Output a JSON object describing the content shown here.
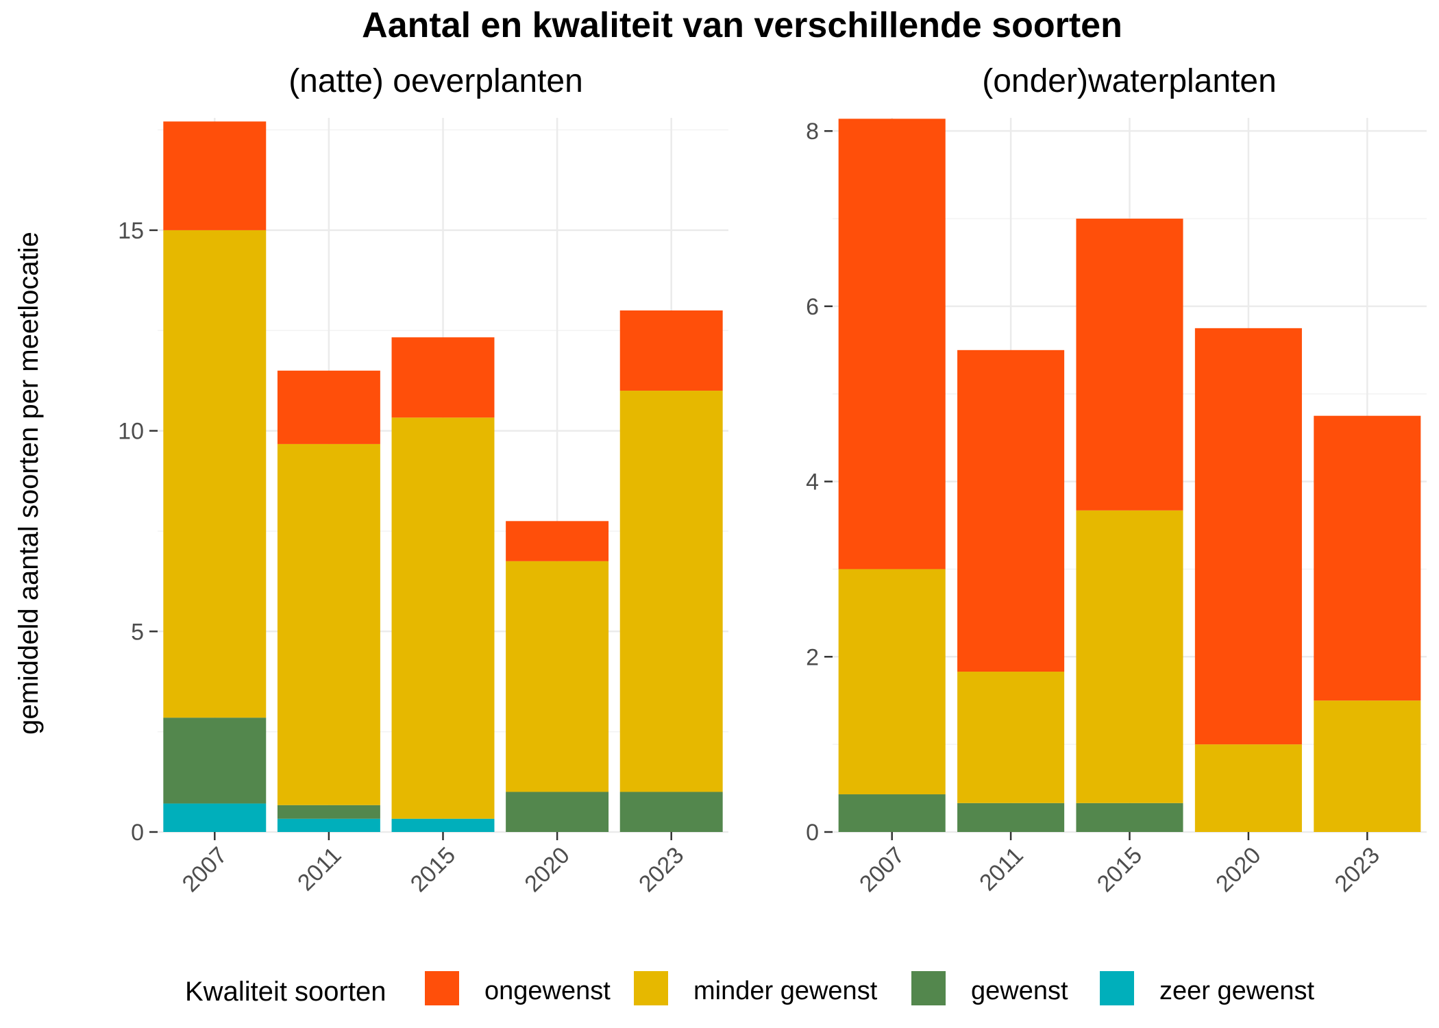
{
  "chart_data": {
    "type": "bar",
    "stacked": true,
    "title": "Aantal en kwaliteit van verschillende soorten",
    "ylabel": "gemiddeld aantal soorten per meetlocatie",
    "legend": {
      "title": "Kwaliteit soorten",
      "position": "bottom",
      "entries": [
        {
          "key": "ongewenst",
          "label": "ongewenst",
          "color": "#FF4F0A"
        },
        {
          "key": "minder_gewenst",
          "label": "minder gewenst",
          "color": "#E6B800"
        },
        {
          "key": "gewenst",
          "label": "gewenst",
          "color": "#53874D"
        },
        {
          "key": "zeer_gewenst",
          "label": "zeer gewenst",
          "color": "#00AFBB"
        }
      ]
    },
    "stack_order_bottom_to_top": [
      "zeer_gewenst",
      "gewenst",
      "minder_gewenst",
      "ongewenst"
    ],
    "panels": [
      {
        "title": "(natte) oeverplanten",
        "categories": [
          "2007",
          "2011",
          "2015",
          "2020",
          "2023"
        ],
        "ylim": [
          0,
          17.8
        ],
        "yticks": [
          0,
          5,
          10,
          15
        ],
        "yticks_labels": [
          "0",
          "5",
          "10",
          "15"
        ],
        "series": [
          {
            "key": "zeer_gewenst",
            "name": "zeer gewenst",
            "values": [
              0.71,
              0.33,
              0.33,
              0,
              0
            ]
          },
          {
            "key": "gewenst",
            "name": "gewenst",
            "values": [
              2.14,
              0.34,
              0,
              1.0,
              1.0
            ]
          },
          {
            "key": "minder_gewenst",
            "name": "minder gewenst",
            "values": [
              12.15,
              9.0,
              10.0,
              5.75,
              10.0
            ]
          },
          {
            "key": "ongewenst",
            "name": "ongewenst",
            "values": [
              2.71,
              1.83,
              2.0,
              1.0,
              2.0
            ]
          }
        ]
      },
      {
        "title": "(onder)waterplanten",
        "categories": [
          "2007",
          "2011",
          "2015",
          "2020",
          "2023"
        ],
        "ylim": [
          0,
          8.15
        ],
        "yticks": [
          0,
          2,
          4,
          6,
          8
        ],
        "yticks_labels": [
          "0",
          "2",
          "4",
          "6",
          "8"
        ],
        "series": [
          {
            "key": "zeer_gewenst",
            "name": "zeer gewenst",
            "values": [
              0,
              0,
              0,
              0,
              0
            ]
          },
          {
            "key": "gewenst",
            "name": "gewenst",
            "values": [
              0.43,
              0.33,
              0.33,
              0,
              0
            ]
          },
          {
            "key": "minder_gewenst",
            "name": "minder gewenst",
            "values": [
              2.57,
              1.5,
              3.34,
              1.0,
              1.5
            ]
          },
          {
            "key": "ongewenst",
            "name": "ongewenst",
            "values": [
              5.14,
              3.67,
              3.33,
              4.75,
              3.25
            ]
          }
        ]
      }
    ]
  }
}
